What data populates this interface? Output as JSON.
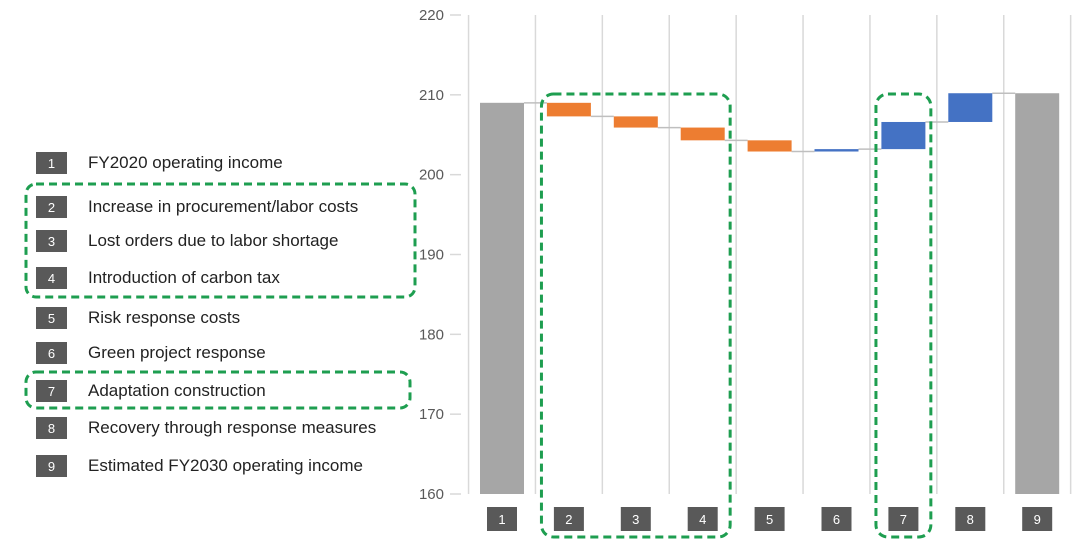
{
  "chart_data": {
    "type": "waterfall",
    "categories": [
      "1",
      "2",
      "3",
      "4",
      "5",
      "6",
      "7",
      "8",
      "9"
    ],
    "legend": [
      {
        "num": "1",
        "label": "FY2020 operating income"
      },
      {
        "num": "2",
        "label": "Increase in procurement/labor costs"
      },
      {
        "num": "3",
        "label": "Lost orders due to labor shortage"
      },
      {
        "num": "4",
        "label": "Introduction of carbon tax"
      },
      {
        "num": "5",
        "label": "Risk response costs"
      },
      {
        "num": "6",
        "label": "Green project response"
      },
      {
        "num": "7",
        "label": "Adaptation construction"
      },
      {
        "num": "8",
        "label": "Recovery through response measures"
      },
      {
        "num": "9",
        "label": "Estimated FY2030 operating income"
      }
    ],
    "bars": [
      {
        "category": "1",
        "kind": "total",
        "start": 160,
        "end": 209.0
      },
      {
        "category": "2",
        "kind": "decrease",
        "start": 209.0,
        "end": 207.3
      },
      {
        "category": "3",
        "kind": "decrease",
        "start": 207.3,
        "end": 205.9
      },
      {
        "category": "4",
        "kind": "decrease",
        "start": 205.9,
        "end": 204.3
      },
      {
        "category": "5",
        "kind": "decrease",
        "start": 204.3,
        "end": 202.9
      },
      {
        "category": "6",
        "kind": "increase",
        "start": 202.9,
        "end": 203.2
      },
      {
        "category": "7",
        "kind": "increase",
        "start": 203.2,
        "end": 206.6
      },
      {
        "category": "8",
        "kind": "increase",
        "start": 206.6,
        "end": 210.2
      },
      {
        "category": "9",
        "kind": "total",
        "start": 160,
        "end": 210.2
      }
    ],
    "ylim": [
      160,
      220
    ],
    "yticks": [
      160,
      170,
      180,
      190,
      200,
      210,
      220
    ],
    "grid": "vertical",
    "highlight_groups": [
      [
        "2",
        "3",
        "4"
      ],
      [
        "7"
      ]
    ],
    "colors": {
      "total": "#a6a6a6",
      "decrease": "#ed7d31",
      "increase": "#4472c4",
      "highlight": "#1e9e50",
      "label_box": "#595959",
      "grid": "#d9d9d9",
      "connector": "#bfbfbf"
    }
  }
}
